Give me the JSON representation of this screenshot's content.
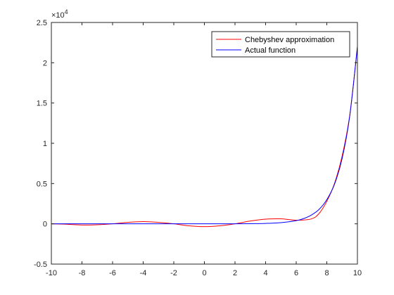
{
  "chart_data": {
    "type": "line",
    "xlim": [
      -10,
      10
    ],
    "ylim": [
      -0.5,
      2.5
    ],
    "y_exponent_label": "×10",
    "y_exponent_power": "4",
    "xticks": [
      -10,
      -8,
      -6,
      -4,
      -2,
      0,
      2,
      4,
      6,
      8,
      10
    ],
    "xtick_labels": [
      "-10",
      "-8",
      "-6",
      "-4",
      "-2",
      "0",
      "2",
      "4",
      "6",
      "8",
      "10"
    ],
    "yticks": [
      -0.5,
      0,
      0.5,
      1,
      1.5,
      2,
      2.5
    ],
    "ytick_labels": [
      "-0.5",
      "0",
      "0.5",
      "1",
      "1.5",
      "2",
      "2.5"
    ],
    "grid": false,
    "legend_position": "top-right",
    "series": [
      {
        "name": "Chebyshev approximation",
        "color": "#ff0000",
        "x": [
          -10,
          -9,
          -8,
          -7,
          -6,
          -5,
          -4,
          -3,
          -2,
          -1,
          0,
          1,
          2,
          3,
          4,
          5,
          6,
          7,
          7.5,
          8,
          8.5,
          9,
          9.5,
          10
        ],
        "y": [
          0.0,
          -0.005,
          -0.015,
          -0.012,
          0.0,
          0.018,
          0.028,
          0.018,
          0.0,
          -0.025,
          -0.035,
          -0.025,
          0.0,
          0.035,
          0.058,
          0.062,
          0.045,
          0.062,
          0.13,
          0.28,
          0.5,
          0.84,
          1.35,
          2.2
        ]
      },
      {
        "name": "Actual function",
        "color": "#0000ff",
        "x": [
          -10,
          -9,
          -8,
          -7,
          -6,
          -5,
          -4,
          -3,
          -2,
          -1,
          0,
          1,
          2,
          3,
          4,
          5,
          6,
          6.5,
          7,
          7.5,
          8,
          8.5,
          9,
          9.5,
          10
        ],
        "y": [
          0.0,
          0.0,
          0.0,
          0.0,
          0.0,
          0.0,
          0.0,
          0.0,
          0.0,
          0.0,
          0.0,
          0.0,
          0.0,
          0.002,
          0.005,
          0.015,
          0.04,
          0.066,
          0.11,
          0.18,
          0.3,
          0.49,
          0.81,
          1.34,
          2.2
        ]
      }
    ]
  }
}
